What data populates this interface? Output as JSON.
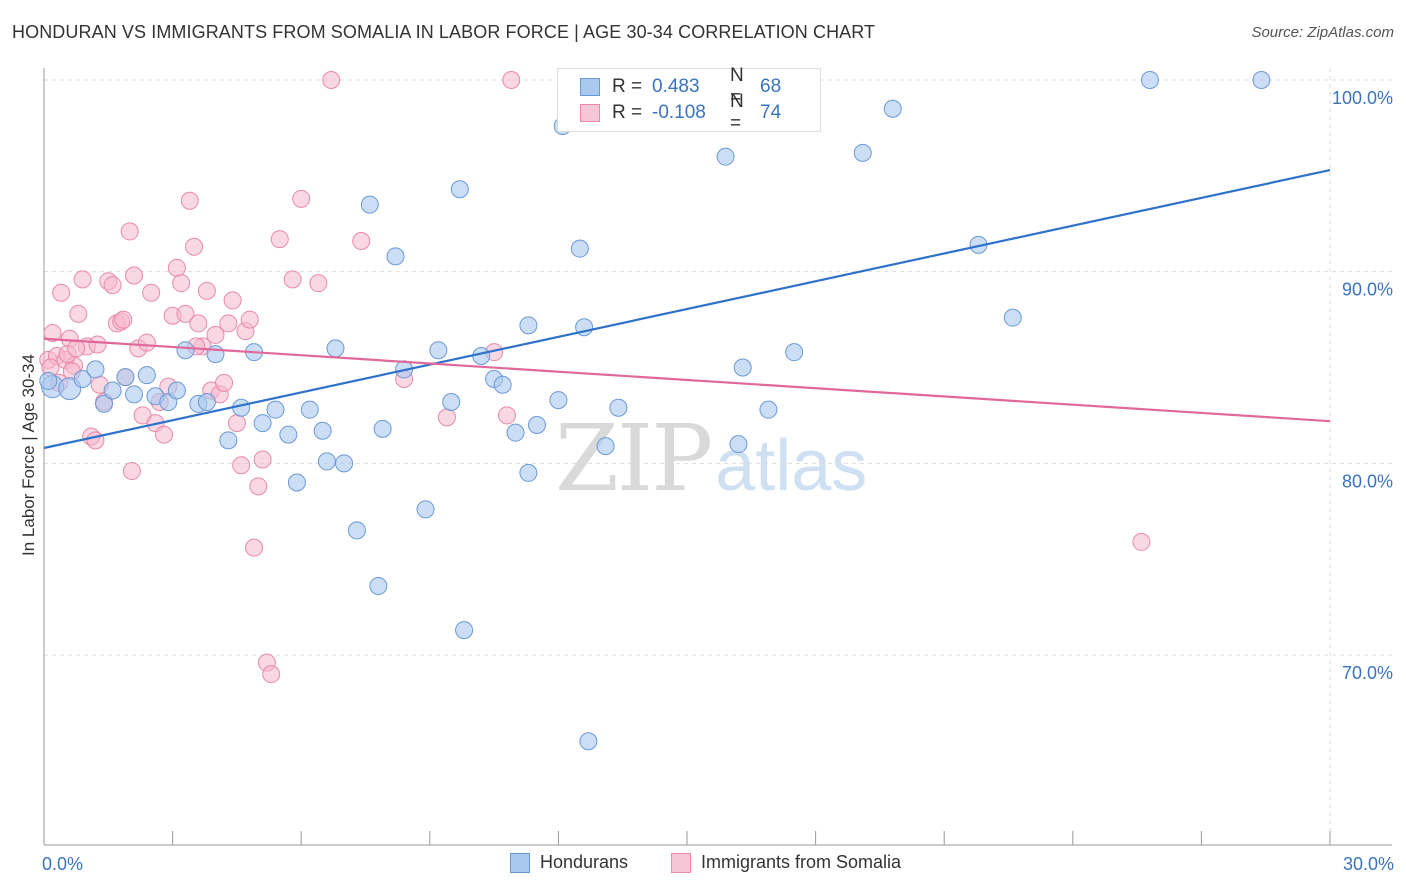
{
  "title": "HONDURAN VS IMMIGRANTS FROM SOMALIA IN LABOR FORCE | AGE 30-34 CORRELATION CHART",
  "source": "Source: ZipAtlas.com",
  "watermark": {
    "zip": "ZIP",
    "atlas": "atlas"
  },
  "legend": {
    "rows": [
      {
        "r_label": "R =",
        "r_value": "0.483",
        "n_label": "N =",
        "n_value": "68"
      },
      {
        "r_label": "R =",
        "r_value": "-0.108",
        "n_label": "N =",
        "n_value": "74"
      }
    ]
  },
  "colors": {
    "hondurans_fill": "#a9c8ee",
    "hondurans_stroke": "#6a9ad6",
    "hondurans_line": "#2f72cc",
    "somalia_fill": "#f5b8cc",
    "somalia_stroke": "#e98aa8",
    "somalia_line": "#e0689a",
    "grid": "#dddddd",
    "axis_label": "#3a73c0"
  },
  "chart_data": {
    "type": "scatter",
    "title": "HONDURAN VS IMMIGRANTS FROM SOMALIA IN LABOR FORCE | AGE 30-34 CORRELATION CHART",
    "xlabel": "",
    "ylabel": "In Labor Force | Age 30-34",
    "xlim": [
      0,
      30
    ],
    "ylim": [
      61,
      102
    ],
    "x_tick_labels": [
      "0.0%",
      "30.0%"
    ],
    "y_ticks": [
      70,
      80,
      90,
      100
    ],
    "y_tick_labels": [
      "70.0%",
      "80.0%",
      "90.0%",
      "100.0%"
    ],
    "grid": true,
    "legend_position": "bottom",
    "series": [
      {
        "name": "Hondurans",
        "trend": {
          "x": [
            0,
            30
          ],
          "y": [
            80.8,
            95.3
          ]
        },
        "points": [
          [
            0.2,
            84.0
          ],
          [
            0.6,
            83.9
          ],
          [
            0.9,
            84.4
          ],
          [
            1.2,
            84.9
          ],
          [
            1.4,
            83.1
          ],
          [
            1.6,
            83.8
          ],
          [
            1.9,
            84.5
          ],
          [
            2.1,
            83.6
          ],
          [
            2.4,
            84.6
          ],
          [
            2.6,
            83.5
          ],
          [
            2.9,
            83.2
          ],
          [
            3.1,
            83.8
          ],
          [
            3.3,
            85.9
          ],
          [
            3.6,
            83.1
          ],
          [
            3.8,
            83.2
          ],
          [
            4.0,
            85.7
          ],
          [
            4.3,
            81.2
          ],
          [
            4.6,
            82.9
          ],
          [
            4.9,
            85.8
          ],
          [
            5.1,
            82.1
          ],
          [
            5.4,
            82.8
          ],
          [
            5.7,
            81.5
          ],
          [
            5.9,
            79.0
          ],
          [
            6.2,
            82.8
          ],
          [
            6.5,
            81.7
          ],
          [
            6.6,
            80.1
          ],
          [
            6.8,
            86.0
          ],
          [
            7.0,
            80.0
          ],
          [
            7.3,
            76.5
          ],
          [
            7.6,
            93.5
          ],
          [
            7.8,
            73.6
          ],
          [
            7.9,
            81.8
          ],
          [
            8.2,
            90.8
          ],
          [
            8.4,
            84.9
          ],
          [
            8.9,
            77.6
          ],
          [
            9.2,
            85.9
          ],
          [
            9.5,
            83.2
          ],
          [
            9.7,
            94.3
          ],
          [
            9.8,
            71.3
          ],
          [
            10.2,
            85.6
          ],
          [
            10.5,
            84.4
          ],
          [
            10.7,
            84.1
          ],
          [
            11.0,
            81.6
          ],
          [
            11.3,
            87.2
          ],
          [
            11.3,
            79.5
          ],
          [
            11.5,
            82.0
          ],
          [
            12.0,
            83.3
          ],
          [
            12.1,
            97.6
          ],
          [
            12.5,
            91.2
          ],
          [
            12.6,
            87.1
          ],
          [
            12.7,
            65.5
          ],
          [
            13.1,
            80.9
          ],
          [
            13.4,
            82.9
          ],
          [
            14.2,
            100.0
          ],
          [
            14.3,
            100.0
          ],
          [
            15.0,
            99.2
          ],
          [
            15.9,
            96.0
          ],
          [
            16.2,
            81.0
          ],
          [
            16.3,
            85.0
          ],
          [
            16.9,
            82.8
          ],
          [
            17.5,
            85.8
          ],
          [
            19.1,
            96.2
          ],
          [
            19.8,
            98.5
          ],
          [
            21.8,
            91.4
          ],
          [
            22.6,
            87.6
          ],
          [
            25.8,
            100.0
          ],
          [
            28.4,
            100.0
          ],
          [
            0.1,
            84.3
          ]
        ]
      },
      {
        "name": "Immigrants from Somalia",
        "trend": {
          "x": [
            0,
            30
          ],
          "y": [
            86.5,
            82.2
          ]
        },
        "points": [
          [
            0.1,
            85.4
          ],
          [
            0.2,
            86.8
          ],
          [
            0.3,
            85.6
          ],
          [
            0.4,
            88.9
          ],
          [
            0.5,
            85.4
          ],
          [
            0.6,
            86.5
          ],
          [
            0.7,
            85.1
          ],
          [
            0.8,
            87.8
          ],
          [
            0.9,
            89.6
          ],
          [
            1.0,
            86.1
          ],
          [
            1.1,
            81.4
          ],
          [
            1.2,
            81.2
          ],
          [
            1.3,
            84.1
          ],
          [
            1.4,
            83.2
          ],
          [
            1.5,
            89.5
          ],
          [
            1.6,
            89.3
          ],
          [
            1.7,
            87.3
          ],
          [
            1.8,
            87.4
          ],
          [
            1.9,
            84.5
          ],
          [
            2.0,
            92.1
          ],
          [
            2.1,
            89.8
          ],
          [
            2.2,
            86.0
          ],
          [
            2.3,
            82.5
          ],
          [
            2.4,
            86.3
          ],
          [
            2.5,
            88.9
          ],
          [
            2.6,
            82.1
          ],
          [
            2.7,
            83.2
          ],
          [
            2.8,
            81.5
          ],
          [
            2.9,
            84.0
          ],
          [
            3.0,
            87.7
          ],
          [
            3.1,
            90.2
          ],
          [
            3.2,
            89.4
          ],
          [
            3.3,
            87.8
          ],
          [
            3.4,
            93.7
          ],
          [
            3.5,
            91.3
          ],
          [
            3.6,
            87.3
          ],
          [
            3.7,
            86.1
          ],
          [
            3.8,
            89.0
          ],
          [
            3.9,
            83.8
          ],
          [
            4.0,
            86.7
          ],
          [
            4.1,
            83.6
          ],
          [
            4.2,
            84.2
          ],
          [
            4.3,
            87.3
          ],
          [
            4.4,
            88.5
          ],
          [
            4.5,
            82.1
          ],
          [
            4.6,
            79.9
          ],
          [
            4.7,
            86.9
          ],
          [
            4.8,
            87.5
          ],
          [
            4.9,
            75.6
          ],
          [
            5.0,
            78.8
          ],
          [
            5.1,
            80.2
          ],
          [
            5.2,
            69.6
          ],
          [
            5.3,
            69.0
          ],
          [
            5.5,
            91.7
          ],
          [
            5.8,
            89.6
          ],
          [
            6.0,
            93.8
          ],
          [
            6.4,
            89.4
          ],
          [
            6.7,
            100.0
          ],
          [
            7.4,
            91.6
          ],
          [
            8.4,
            84.4
          ],
          [
            9.4,
            82.4
          ],
          [
            10.5,
            85.8
          ],
          [
            10.8,
            82.5
          ],
          [
            10.9,
            100.0
          ],
          [
            25.6,
            75.9
          ],
          [
            0.15,
            85.0
          ],
          [
            0.35,
            84.2
          ],
          [
            0.55,
            85.7
          ],
          [
            0.65,
            84.8
          ],
          [
            0.75,
            86.0
          ],
          [
            2.05,
            79.6
          ],
          [
            1.25,
            86.2
          ],
          [
            1.85,
            87.5
          ],
          [
            3.55,
            86.1
          ]
        ]
      }
    ]
  },
  "bottom_legend": {
    "items": [
      {
        "label": "Hondurans"
      },
      {
        "label": "Immigrants from Somalia"
      }
    ]
  }
}
